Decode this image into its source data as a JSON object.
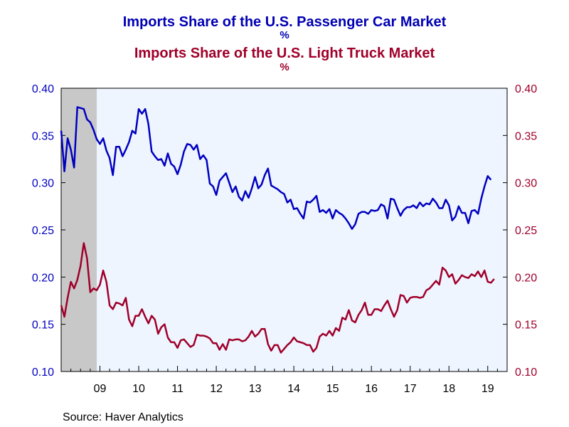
{
  "titles": {
    "left": "Imports Share of the U.S. Passenger Car Market",
    "left_unit": "%",
    "right": "Imports Share of the U.S. Light Truck Market",
    "right_unit": "%"
  },
  "source": "Source:  Haver Analytics",
  "colors": {
    "car": "#0000c0",
    "truck": "#a0002a",
    "plot_bg": "#eef5ff",
    "recession": "#c8c8c8"
  },
  "chart_data": {
    "type": "line",
    "x_unit": "months since Jan 2008",
    "xlim": [
      0,
      138
    ],
    "x_ticks": [
      {
        "label": "09",
        "x": 12
      },
      {
        "label": "10",
        "x": 24
      },
      {
        "label": "11",
        "x": 36
      },
      {
        "label": "12",
        "x": 48
      },
      {
        "label": "13",
        "x": 60
      },
      {
        "label": "14",
        "x": 72
      },
      {
        "label": "15",
        "x": 84
      },
      {
        "label": "16",
        "x": 96
      },
      {
        "label": "17",
        "x": 108
      },
      {
        "label": "18",
        "x": 120
      },
      {
        "label": "19",
        "x": 132
      }
    ],
    "ylim": [
      0.1,
      0.4
    ],
    "y_ticks": [
      "0.10",
      "0.15",
      "0.20",
      "0.25",
      "0.30",
      "0.35",
      "0.40"
    ],
    "y_ticks_right": [
      "0.10",
      "0.15",
      "0.20",
      "0.25",
      "0.30",
      "0.35",
      "0.40"
    ],
    "recession": [
      0,
      11
    ],
    "grid": false,
    "series": [
      {
        "name": "Imports Share of the U.S. Passenger Car Market",
        "axis": "left",
        "values": [
          0.355,
          0.312,
          0.347,
          0.335,
          0.316,
          0.38,
          0.379,
          0.378,
          0.367,
          0.364,
          0.356,
          0.346,
          0.341,
          0.347,
          0.334,
          0.326,
          0.308,
          0.338,
          0.338,
          0.328,
          0.335,
          0.343,
          0.355,
          0.352,
          0.378,
          0.373,
          0.378,
          0.362,
          0.333,
          0.328,
          0.324,
          0.325,
          0.318,
          0.331,
          0.32,
          0.317,
          0.309,
          0.319,
          0.333,
          0.341,
          0.34,
          0.335,
          0.34,
          0.325,
          0.329,
          0.324,
          0.299,
          0.296,
          0.287,
          0.302,
          0.306,
          0.31,
          0.3,
          0.29,
          0.296,
          0.285,
          0.281,
          0.291,
          0.284,
          0.294,
          0.306,
          0.294,
          0.298,
          0.308,
          0.315,
          0.297,
          0.295,
          0.293,
          0.29,
          0.288,
          0.279,
          0.282,
          0.272,
          0.273,
          0.267,
          0.262,
          0.28,
          0.279,
          0.282,
          0.286,
          0.269,
          0.271,
          0.268,
          0.272,
          0.262,
          0.271,
          0.268,
          0.266,
          0.262,
          0.257,
          0.251,
          0.256,
          0.267,
          0.269,
          0.269,
          0.267,
          0.271,
          0.27,
          0.271,
          0.277,
          0.275,
          0.262,
          0.283,
          0.282,
          0.273,
          0.265,
          0.271,
          0.274,
          0.274,
          0.276,
          0.273,
          0.279,
          0.275,
          0.278,
          0.277,
          0.283,
          0.279,
          0.273,
          0.273,
          0.282,
          0.276,
          0.26,
          0.264,
          0.275,
          0.268,
          0.268,
          0.257,
          0.27,
          0.271,
          0.267,
          0.283,
          0.296,
          0.307,
          0.303
        ]
      },
      {
        "name": "Imports Share of the U.S. Light Truck Market",
        "axis": "right",
        "values": [
          0.17,
          0.158,
          0.178,
          0.195,
          0.188,
          0.197,
          0.212,
          0.236,
          0.22,
          0.184,
          0.188,
          0.186,
          0.192,
          0.207,
          0.195,
          0.17,
          0.166,
          0.173,
          0.172,
          0.17,
          0.178,
          0.155,
          0.148,
          0.159,
          0.159,
          0.166,
          0.158,
          0.151,
          0.159,
          0.155,
          0.14,
          0.147,
          0.15,
          0.136,
          0.131,
          0.131,
          0.125,
          0.133,
          0.134,
          0.13,
          0.126,
          0.128,
          0.139,
          0.138,
          0.138,
          0.137,
          0.135,
          0.13,
          0.13,
          0.123,
          0.129,
          0.123,
          0.134,
          0.133,
          0.134,
          0.134,
          0.132,
          0.133,
          0.137,
          0.143,
          0.137,
          0.14,
          0.145,
          0.145,
          0.129,
          0.122,
          0.128,
          0.128,
          0.12,
          0.124,
          0.128,
          0.131,
          0.136,
          0.132,
          0.131,
          0.13,
          0.128,
          0.128,
          0.121,
          0.125,
          0.137,
          0.14,
          0.138,
          0.143,
          0.138,
          0.146,
          0.143,
          0.157,
          0.155,
          0.165,
          0.154,
          0.152,
          0.16,
          0.165,
          0.173,
          0.16,
          0.16,
          0.166,
          0.166,
          0.164,
          0.17,
          0.175,
          0.166,
          0.158,
          0.165,
          0.181,
          0.18,
          0.173,
          0.178,
          0.179,
          0.179,
          0.178,
          0.179,
          0.186,
          0.188,
          0.192,
          0.196,
          0.192,
          0.21,
          0.207,
          0.2,
          0.203,
          0.193,
          0.197,
          0.202,
          0.2,
          0.199,
          0.203,
          0.201,
          0.206,
          0.2,
          0.207,
          0.195,
          0.194,
          0.198
        ]
      }
    ]
  }
}
